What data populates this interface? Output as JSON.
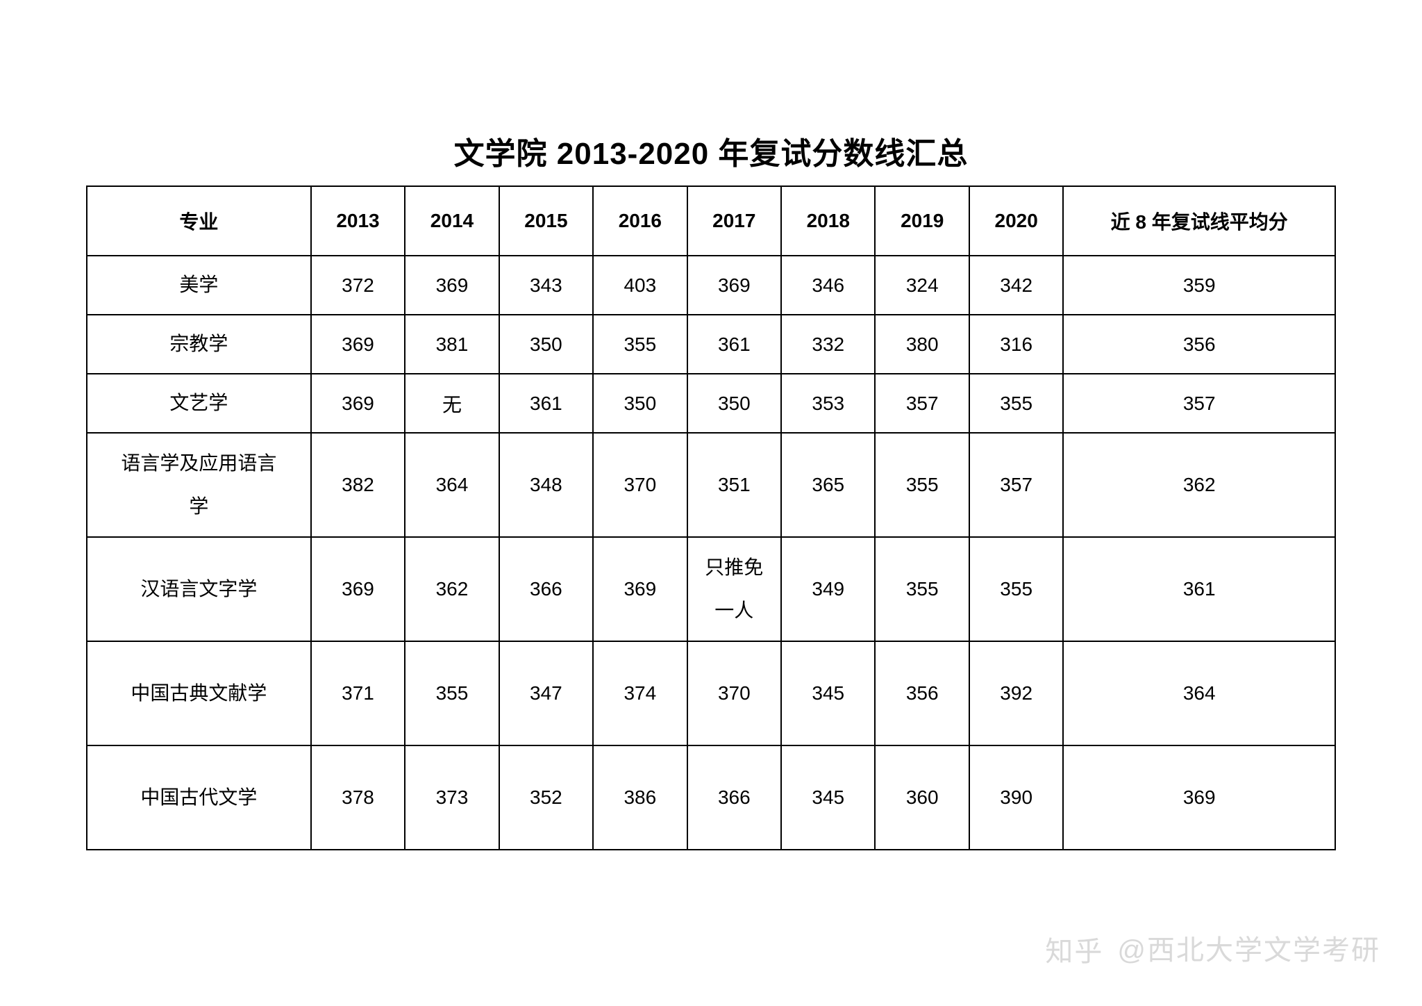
{
  "title": "文学院 2013-2020 年复试分数线汇总",
  "table": {
    "columns": [
      "专业",
      "2013",
      "2014",
      "2015",
      "2016",
      "2017",
      "2018",
      "2019",
      "2020",
      "近 8 年复试线平均分"
    ],
    "col_major_width": 305,
    "col_year_width": 128,
    "col_avg_width": 370,
    "rows": [
      {
        "major": "美学",
        "values": [
          "372",
          "369",
          "343",
          "403",
          "369",
          "346",
          "324",
          "342"
        ],
        "avg": "359",
        "tall": false
      },
      {
        "major": "宗教学",
        "values": [
          "369",
          "381",
          "350",
          "355",
          "361",
          "332",
          "380",
          "316"
        ],
        "avg": "356",
        "tall": false
      },
      {
        "major": "文艺学",
        "values": [
          "369",
          "无",
          "361",
          "350",
          "350",
          "353",
          "357",
          "355"
        ],
        "avg": "357",
        "tall": false
      },
      {
        "major": "语言学及应用语言学",
        "major_lines": [
          "语言学及应用语言",
          "学"
        ],
        "values": [
          "382",
          "364",
          "348",
          "370",
          "351",
          "365",
          "355",
          "357"
        ],
        "avg": "362",
        "tall": true
      },
      {
        "major": "汉语言文字学",
        "values": [
          "369",
          "362",
          "366",
          "369",
          "只推免一人",
          "349",
          "355",
          "355"
        ],
        "value_lines_idx4": [
          "只推免",
          "一人"
        ],
        "avg": "361",
        "tall": true
      },
      {
        "major": "中国古典文献学",
        "values": [
          "371",
          "355",
          "347",
          "374",
          "370",
          "345",
          "356",
          "392"
        ],
        "avg": "364",
        "tall": true
      },
      {
        "major": "中国古代文学",
        "values": [
          "378",
          "373",
          "352",
          "386",
          "366",
          "345",
          "360",
          "390"
        ],
        "avg": "369",
        "tall": true
      }
    ],
    "border_color": "#000000",
    "background_color": "#ffffff",
    "header_fontsize": 28,
    "cell_fontsize": 28,
    "title_fontsize": 44
  },
  "watermark": {
    "logo": "知乎",
    "text": "@西北大学文学考研",
    "color": "#d9d9d9",
    "fontsize": 40
  }
}
